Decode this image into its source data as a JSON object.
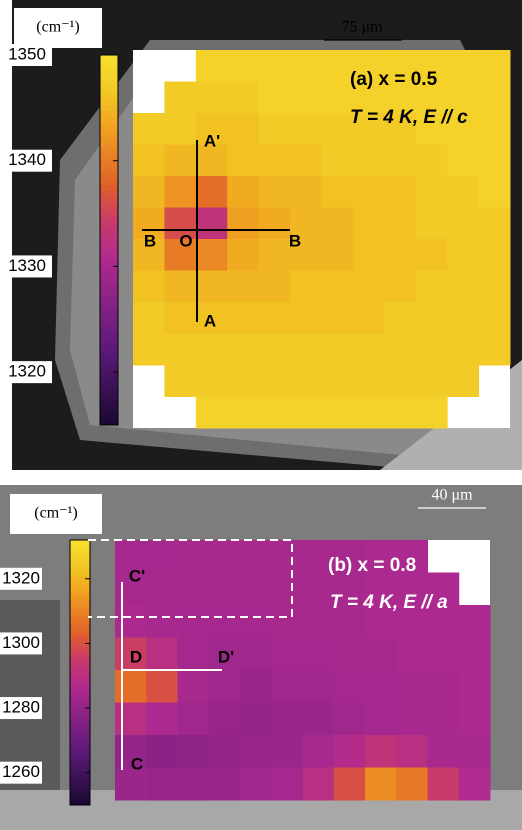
{
  "panels": [
    {
      "unit": "(cm⁻¹)",
      "scale_bar": "75 μm",
      "title": "(a) x = 0.5",
      "condition": "T = 4 K, E // c",
      "colorbar": {
        "lim": [
          1315,
          1350
        ],
        "ticks": [
          1320,
          1330,
          1340,
          1350
        ]
      },
      "markers": [
        "A'",
        "A",
        "B",
        "O",
        "B"
      ],
      "map": [
        [
          null,
          null,
          1348,
          1348,
          1348,
          1348,
          1348,
          1348,
          1348,
          1348,
          1348,
          1348
        ],
        [
          null,
          1347,
          1347,
          1347,
          1348,
          1348,
          1348,
          1348,
          1348,
          1348,
          1348,
          1348
        ],
        [
          1347,
          1347,
          1346,
          1346,
          1347,
          1347,
          1347,
          1347,
          1347,
          1348,
          1348,
          1348
        ],
        [
          1346,
          1345,
          1345,
          1346,
          1346,
          1346,
          1347,
          1347,
          1347,
          1347,
          1348,
          1348
        ],
        [
          1345,
          1342,
          1339,
          1344,
          1345,
          1345,
          1346,
          1346,
          1346,
          1347,
          1347,
          1348
        ],
        [
          1344,
          1336,
          1333,
          1343,
          1344,
          1345,
          1345,
          1346,
          1346,
          1347,
          1347,
          1347
        ],
        [
          1345,
          1340,
          1341,
          1344,
          1345,
          1345,
          1345,
          1346,
          1346,
          1346,
          1347,
          1347
        ],
        [
          1346,
          1345,
          1345,
          1345,
          1345,
          1346,
          1346,
          1346,
          1346,
          1347,
          1347,
          1347
        ],
        [
          1347,
          1346,
          1346,
          1346,
          1346,
          1346,
          1346,
          1346,
          1347,
          1347,
          1347,
          1347
        ],
        [
          1347,
          1347,
          1347,
          1347,
          1347,
          1347,
          1347,
          1347,
          1347,
          1347,
          1347,
          1347
        ],
        [
          null,
          1347,
          1347,
          1347,
          1347,
          1347,
          1347,
          1347,
          1347,
          1347,
          1347,
          null
        ],
        [
          null,
          null,
          1348,
          1348,
          1348,
          1348,
          1348,
          1348,
          1348,
          1348,
          null,
          null
        ]
      ]
    },
    {
      "unit": "(cm⁻¹)",
      "scale_bar": "40 μm",
      "title": "(b) x = 0.8",
      "condition": "T = 4 K, E // a",
      "colorbar": {
        "lim": [
          1250,
          1332
        ],
        "ticks": [
          1260,
          1280,
          1300,
          1320
        ]
      },
      "markers": [
        "C'",
        "C",
        "D",
        "D'"
      ],
      "map": [
        [
          1284,
          1284,
          1285,
          1285,
          1285,
          1285,
          1285,
          1285,
          1286,
          1286,
          null,
          null
        ],
        [
          1285,
          1285,
          1285,
          1285,
          1285,
          1285,
          1285,
          1285,
          1286,
          1286,
          1286,
          null
        ],
        [
          1286,
          1285,
          1284,
          1284,
          1284,
          1285,
          1285,
          1285,
          1286,
          1286,
          1286,
          1286
        ],
        [
          1296,
          1290,
          1284,
          1283,
          1283,
          1284,
          1284,
          1285,
          1285,
          1286,
          1286,
          1286
        ],
        [
          1306,
          1300,
          1285,
          1283,
          1282,
          1283,
          1283,
          1284,
          1284,
          1285,
          1285,
          1286
        ],
        [
          1290,
          1286,
          1283,
          1281,
          1280,
          1282,
          1282,
          1283,
          1284,
          1285,
          1285,
          1286
        ],
        [
          1280,
          1278,
          1279,
          1280,
          1281,
          1282,
          1285,
          1288,
          1292,
          1290,
          1285,
          1285
        ],
        [
          1282,
          1281,
          1281,
          1282,
          1283,
          1284,
          1290,
          1300,
          1312,
          1308,
          1295,
          1287
        ]
      ]
    }
  ]
}
